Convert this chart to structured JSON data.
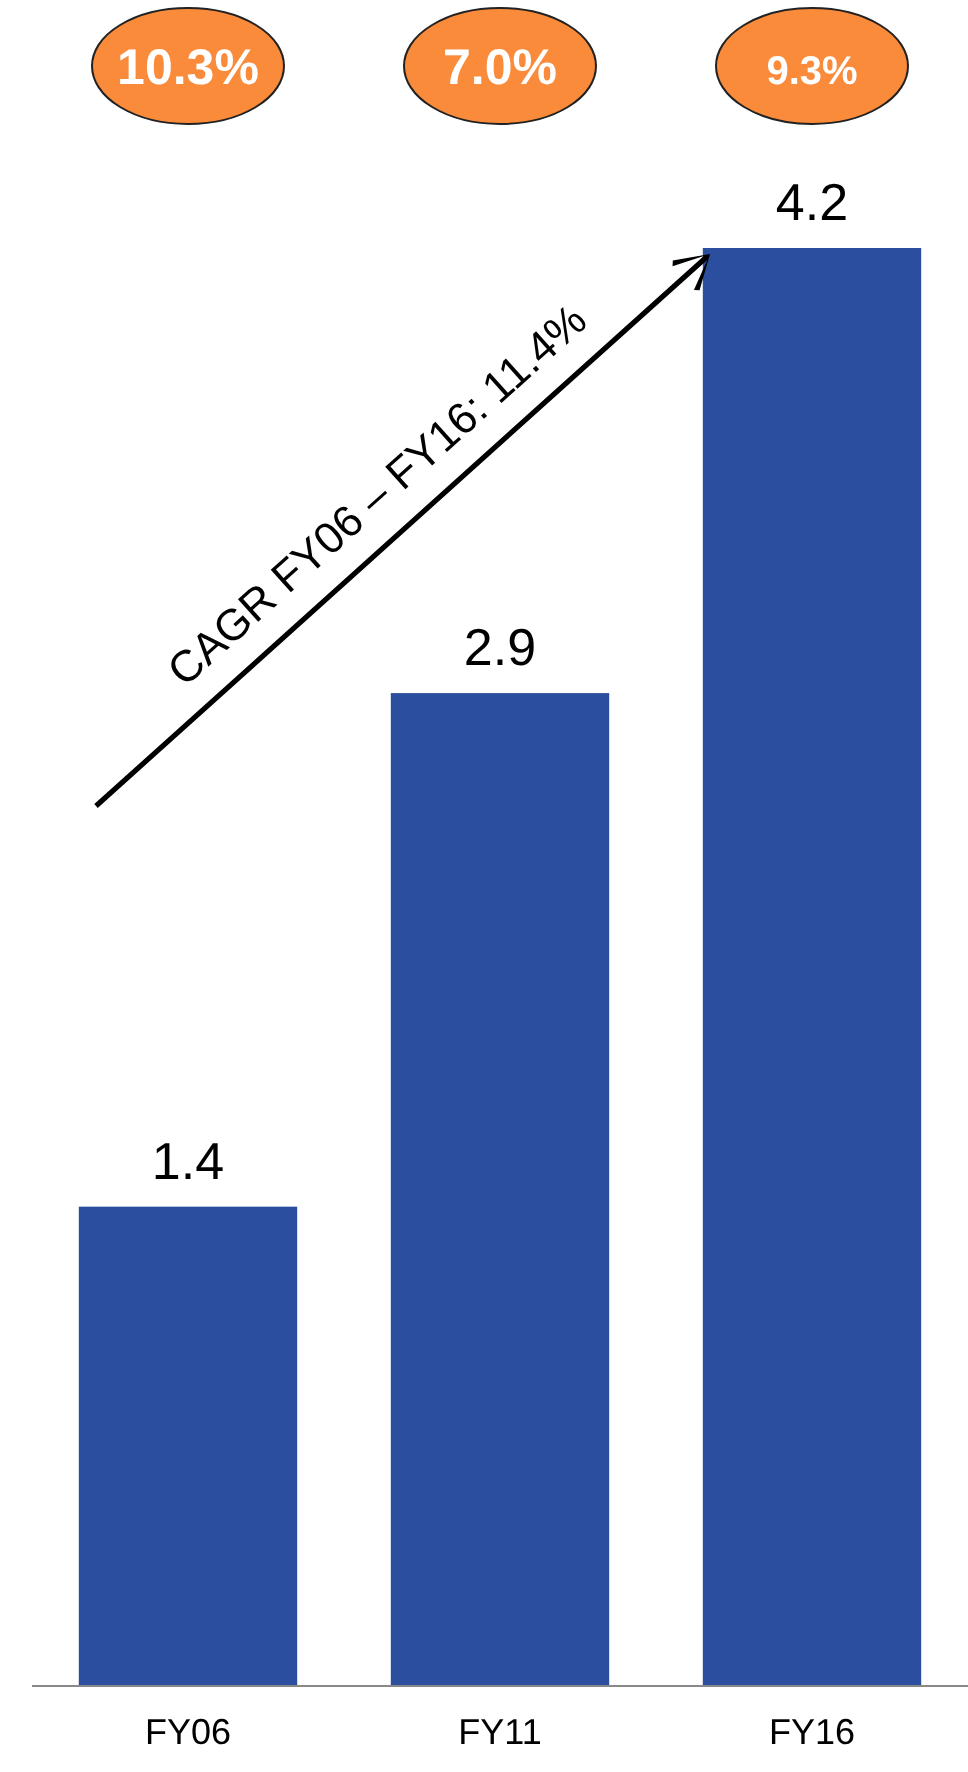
{
  "chart_data": {
    "type": "bar",
    "categories": [
      "FY06",
      "FY11",
      "FY16"
    ],
    "values": [
      1.4,
      2.9,
      4.2
    ],
    "color": "#2b4f9e",
    "data_labels": true,
    "annotations": [
      "10.3%",
      "7.0%",
      "9.3%",
      "CAGR FY06 – FY16: 11.4%"
    ]
  }
}
